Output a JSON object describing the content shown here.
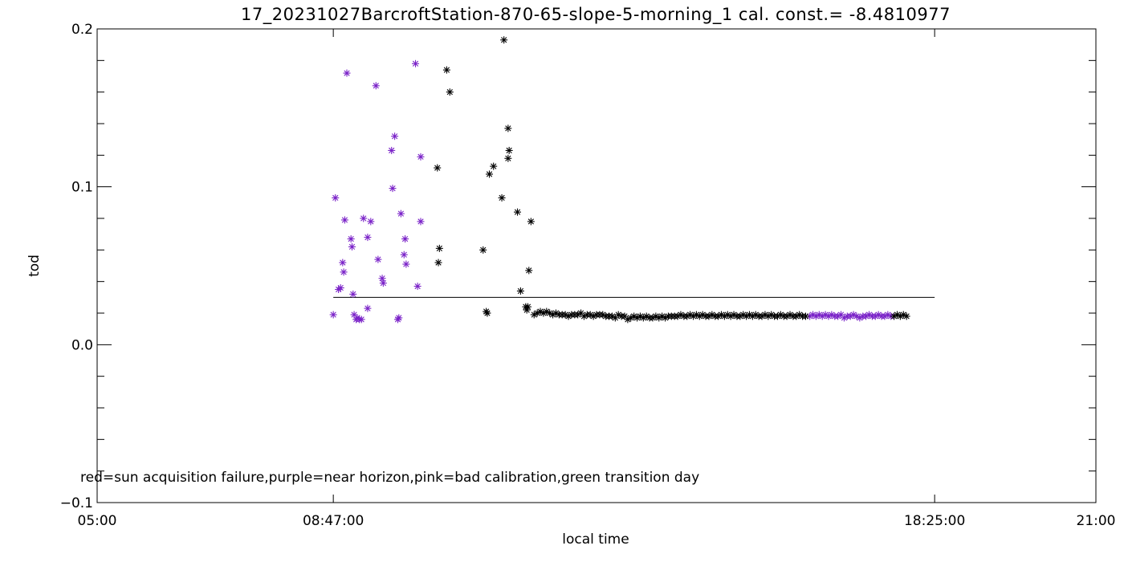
{
  "chart_data": {
    "type": "scatter",
    "title": "17_20231027BarcroftStation-870-65-slope-5-morning_1 cal. const.= -8.4810977",
    "xlabel": "local time",
    "ylabel": "tod",
    "xlim": [
      "05:00",
      "21:00"
    ],
    "ylim": [
      -0.1,
      0.2
    ],
    "x_ticks": [
      "05:00",
      "08:47:00",
      "18:25:00",
      "21:00"
    ],
    "y_ticks": [
      "-0.1",
      "0.0",
      "0.1",
      "0.2"
    ],
    "legend_text": "red=sun acquisition failure,purple=near horizon,pink=bad calibration,green transition day",
    "reference_line": {
      "x_start": "08:47",
      "x_end": "18:25",
      "y": 0.03
    },
    "marker": "asterisk",
    "colors": {
      "normal": "#000000",
      "near_horizon": "#7a22c8"
    },
    "series": [
      {
        "name": "near horizon",
        "color": "#7a22c8",
        "points": [
          [
            "08:47",
            0.019
          ],
          [
            "08:49",
            0.093
          ],
          [
            "08:52",
            0.035
          ],
          [
            "08:54",
            0.036
          ],
          [
            "08:56",
            0.052
          ],
          [
            "08:57",
            0.046
          ],
          [
            "08:58",
            0.079
          ],
          [
            "09:00",
            0.172
          ],
          [
            "09:04",
            0.067
          ],
          [
            "09:05",
            0.062
          ],
          [
            "09:06",
            0.032
          ],
          [
            "09:07",
            0.019
          ],
          [
            "09:09",
            0.016
          ],
          [
            "09:10",
            0.017
          ],
          [
            "09:12",
            0.016
          ],
          [
            "09:14",
            0.016
          ],
          [
            "09:16",
            0.08
          ],
          [
            "09:20",
            0.068
          ],
          [
            "09:20",
            0.023
          ],
          [
            "09:23",
            0.078
          ],
          [
            "09:28",
            0.164
          ],
          [
            "09:30",
            0.054
          ],
          [
            "09:34",
            0.042
          ],
          [
            "09:35",
            0.039
          ],
          [
            "09:43",
            0.123
          ],
          [
            "09:44",
            0.099
          ],
          [
            "09:46",
            0.132
          ],
          [
            "09:49",
            0.016
          ],
          [
            "09:50",
            0.017
          ],
          [
            "09:52",
            0.083
          ],
          [
            "09:55",
            0.057
          ],
          [
            "09:56",
            0.067
          ],
          [
            "09:57",
            0.051
          ],
          [
            "10:06",
            0.178
          ],
          [
            "10:08",
            0.037
          ],
          [
            "10:11",
            0.119
          ],
          [
            "10:11",
            0.078
          ],
          [
            "16:25",
            0.018
          ],
          [
            "16:28",
            0.019
          ],
          [
            "16:31",
            0.018
          ],
          [
            "16:34",
            0.019
          ],
          [
            "16:37",
            0.018
          ],
          [
            "16:40",
            0.019
          ],
          [
            "16:43",
            0.018
          ],
          [
            "16:46",
            0.019
          ],
          [
            "16:49",
            0.018
          ],
          [
            "16:52",
            0.018
          ],
          [
            "16:55",
            0.019
          ],
          [
            "16:58",
            0.017
          ],
          [
            "17:01",
            0.018
          ],
          [
            "17:04",
            0.018
          ],
          [
            "17:07",
            0.019
          ],
          [
            "17:10",
            0.018
          ],
          [
            "17:13",
            0.017
          ],
          [
            "17:16",
            0.018
          ],
          [
            "17:19",
            0.018
          ],
          [
            "17:22",
            0.019
          ],
          [
            "17:25",
            0.018
          ],
          [
            "17:28",
            0.018
          ],
          [
            "17:31",
            0.019
          ],
          [
            "17:34",
            0.018
          ],
          [
            "17:37",
            0.018
          ],
          [
            "17:40",
            0.019
          ],
          [
            "17:43",
            0.018
          ]
        ]
      },
      {
        "name": "normal",
        "color": "#000000",
        "points": [
          [
            "10:27",
            0.112
          ],
          [
            "10:28",
            0.052
          ],
          [
            "10:29",
            0.061
          ],
          [
            "10:36",
            0.174
          ],
          [
            "10:39",
            0.16
          ],
          [
            "11:11",
            0.06
          ],
          [
            "11:14",
            0.021
          ],
          [
            "11:15",
            0.02
          ],
          [
            "11:17",
            0.108
          ],
          [
            "11:21",
            0.113
          ],
          [
            "11:29",
            0.093
          ],
          [
            "11:31",
            0.193
          ],
          [
            "11:35",
            0.137
          ],
          [
            "11:35",
            0.118
          ],
          [
            "11:36",
            0.123
          ],
          [
            "11:44",
            0.084
          ],
          [
            "11:47",
            0.034
          ],
          [
            "11:52",
            0.024
          ],
          [
            "11:53",
            0.022
          ],
          [
            "11:54",
            0.024
          ],
          [
            "11:55",
            0.047
          ],
          [
            "11:57",
            0.078
          ],
          [
            "12:00",
            0.019
          ],
          [
            "12:03",
            0.02
          ],
          [
            "12:06",
            0.021
          ],
          [
            "12:09",
            0.02
          ],
          [
            "12:12",
            0.021
          ],
          [
            "12:15",
            0.02
          ],
          [
            "12:18",
            0.019
          ],
          [
            "12:21",
            0.02
          ],
          [
            "12:24",
            0.019
          ],
          [
            "12:27",
            0.019
          ],
          [
            "12:30",
            0.019
          ],
          [
            "12:33",
            0.018
          ],
          [
            "12:36",
            0.019
          ],
          [
            "12:39",
            0.019
          ],
          [
            "12:42",
            0.019
          ],
          [
            "12:45",
            0.02
          ],
          [
            "12:48",
            0.018
          ],
          [
            "12:51",
            0.019
          ],
          [
            "12:54",
            0.019
          ],
          [
            "12:57",
            0.018
          ],
          [
            "13:00",
            0.019
          ],
          [
            "13:03",
            0.019
          ],
          [
            "13:06",
            0.019
          ],
          [
            "13:09",
            0.018
          ],
          [
            "13:12",
            0.018
          ],
          [
            "13:15",
            0.018
          ],
          [
            "13:18",
            0.017
          ],
          [
            "13:21",
            0.019
          ],
          [
            "13:24",
            0.018
          ],
          [
            "13:27",
            0.018
          ],
          [
            "13:30",
            0.016
          ],
          [
            "13:33",
            0.017
          ],
          [
            "13:36",
            0.018
          ],
          [
            "13:39",
            0.017
          ],
          [
            "13:42",
            0.018
          ],
          [
            "13:45",
            0.017
          ],
          [
            "13:48",
            0.018
          ],
          [
            "13:51",
            0.017
          ],
          [
            "13:54",
            0.017
          ],
          [
            "13:57",
            0.018
          ],
          [
            "14:00",
            0.017
          ],
          [
            "14:03",
            0.018
          ],
          [
            "14:06",
            0.017
          ],
          [
            "14:09",
            0.018
          ],
          [
            "14:12",
            0.018
          ],
          [
            "14:15",
            0.018
          ],
          [
            "14:18",
            0.018
          ],
          [
            "14:21",
            0.019
          ],
          [
            "14:24",
            0.018
          ],
          [
            "14:27",
            0.018
          ],
          [
            "14:30",
            0.019
          ],
          [
            "14:33",
            0.018
          ],
          [
            "14:36",
            0.019
          ],
          [
            "14:39",
            0.018
          ],
          [
            "14:42",
            0.019
          ],
          [
            "14:45",
            0.018
          ],
          [
            "14:48",
            0.018
          ],
          [
            "14:51",
            0.019
          ],
          [
            "14:54",
            0.018
          ],
          [
            "14:57",
            0.018
          ],
          [
            "15:00",
            0.019
          ],
          [
            "15:03",
            0.018
          ],
          [
            "15:06",
            0.019
          ],
          [
            "15:09",
            0.018
          ],
          [
            "15:12",
            0.019
          ],
          [
            "15:15",
            0.018
          ],
          [
            "15:18",
            0.018
          ],
          [
            "15:21",
            0.019
          ],
          [
            "15:24",
            0.018
          ],
          [
            "15:27",
            0.019
          ],
          [
            "15:30",
            0.018
          ],
          [
            "15:33",
            0.019
          ],
          [
            "15:36",
            0.018
          ],
          [
            "15:39",
            0.018
          ],
          [
            "15:42",
            0.019
          ],
          [
            "15:45",
            0.018
          ],
          [
            "15:48",
            0.019
          ],
          [
            "15:51",
            0.018
          ],
          [
            "15:54",
            0.018
          ],
          [
            "15:57",
            0.019
          ],
          [
            "16:00",
            0.018
          ],
          [
            "16:03",
            0.018
          ],
          [
            "16:06",
            0.019
          ],
          [
            "16:09",
            0.018
          ],
          [
            "16:12",
            0.018
          ],
          [
            "16:15",
            0.019
          ],
          [
            "16:18",
            0.018
          ],
          [
            "16:21",
            0.018
          ],
          [
            "17:46",
            0.018
          ],
          [
            "17:49",
            0.019
          ],
          [
            "17:52",
            0.018
          ],
          [
            "17:55",
            0.019
          ],
          [
            "17:58",
            0.018
          ]
        ]
      }
    ]
  }
}
